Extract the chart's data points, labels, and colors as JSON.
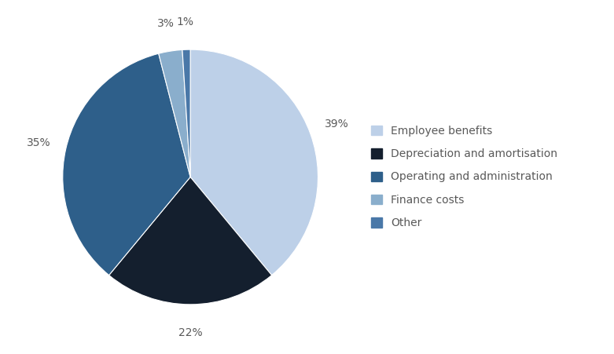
{
  "labels": [
    "Employee benefits",
    "Depreciation and amortisation",
    "Operating and administration",
    "Finance costs",
    "Other"
  ],
  "values": [
    39,
    22,
    35,
    3,
    1
  ],
  "colors": [
    "#bdd0e8",
    "#141f2e",
    "#2e5f8a",
    "#8aaecc",
    "#4a78a8"
  ],
  "pct_labels": [
    "39%",
    "22%",
    "35%",
    "3%",
    "1%"
  ],
  "startangle": 90,
  "background_color": "#ffffff",
  "label_fontsize": 10,
  "legend_fontsize": 10,
  "text_color": "#595959"
}
